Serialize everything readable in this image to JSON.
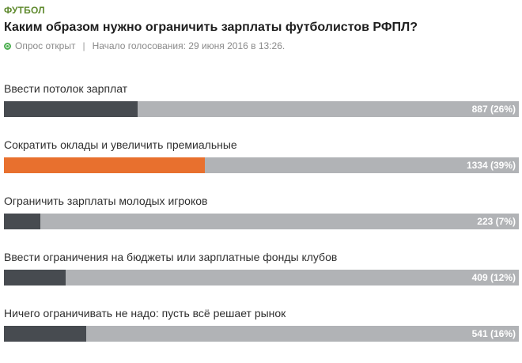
{
  "category": "ФУТБОЛ",
  "title": "Каким образом нужно ограничить зарплаты футболистов РФПЛ?",
  "meta": {
    "status": "Опрос открыт",
    "separator": "|",
    "started": "Начало голосования: 29 июня 2016 в 13:26."
  },
  "colors": {
    "accent": "#e8702e",
    "bar_fill": "#474b50",
    "bar_track": "#b1b3b6",
    "category": "#5f8a2e",
    "status_open": "#4caf50"
  },
  "options": [
    {
      "label": "Ввести потолок зарплат",
      "votes": 887,
      "percent": 26,
      "result": "887 (26%)",
      "leading": false
    },
    {
      "label": "Сократить оклады и увеличить премиальные",
      "votes": 1334,
      "percent": 39,
      "result": "1334 (39%)",
      "leading": true
    },
    {
      "label": "Ограничить зарплаты молодых игроков",
      "votes": 223,
      "percent": 7,
      "result": "223 (7%)",
      "leading": false
    },
    {
      "label": "Ввести ограничения на бюджеты или зарплатные фонды клубов",
      "votes": 409,
      "percent": 12,
      "result": "409 (12%)",
      "leading": false
    },
    {
      "label": "Ничего ограничивать не надо: пусть всё решает рынок",
      "votes": 541,
      "percent": 16,
      "result": "541 (16%)",
      "leading": false
    }
  ]
}
